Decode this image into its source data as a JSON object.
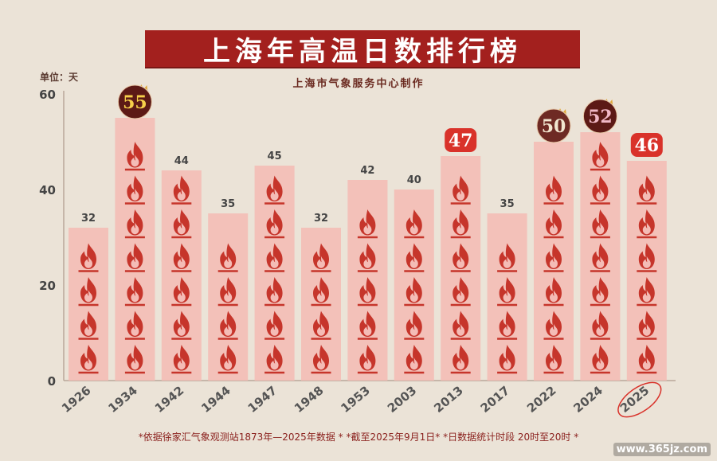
{
  "title": "上海年高温日数排行榜",
  "subtitle": "上海市气象服务中心制作",
  "unit_label": "单位：天",
  "footnote": "*依据徐家汇气象观测站1873年—2025年数据 * *截至2025年9月1日* *日数据统计时段 20时至20时 *",
  "watermark": "www.365jz.com",
  "colors": {
    "bar": "#f4bcb6",
    "flame": "#c6352b",
    "title_bg": "#a3201e",
    "badge_dark": "#5c1a16",
    "badge_red": "#d9322a",
    "badge_brown": "#6e2a24"
  },
  "chart_data": {
    "type": "bar",
    "categories": [
      "1926",
      "1934",
      "1942",
      "1944",
      "1947",
      "1948",
      "1953",
      "2003",
      "2013",
      "2017",
      "2022",
      "2024",
      "2025"
    ],
    "values": [
      32,
      55,
      44,
      35,
      45,
      32,
      42,
      40,
      47,
      35,
      50,
      52,
      46
    ],
    "title": "上海年高温日数排行榜",
    "ylim": [
      0,
      60
    ],
    "yticks": [
      0,
      20,
      40,
      60
    ],
    "highlights": [
      {
        "category": "1934",
        "value": 55,
        "style": "dark-crown"
      },
      {
        "category": "2013",
        "value": 47,
        "style": "red"
      },
      {
        "category": "2022",
        "value": 50,
        "style": "brown-crown"
      },
      {
        "category": "2024",
        "value": 52,
        "style": "dark-crown"
      },
      {
        "category": "2025",
        "value": 46,
        "style": "red"
      }
    ],
    "circled_category": "2025"
  }
}
